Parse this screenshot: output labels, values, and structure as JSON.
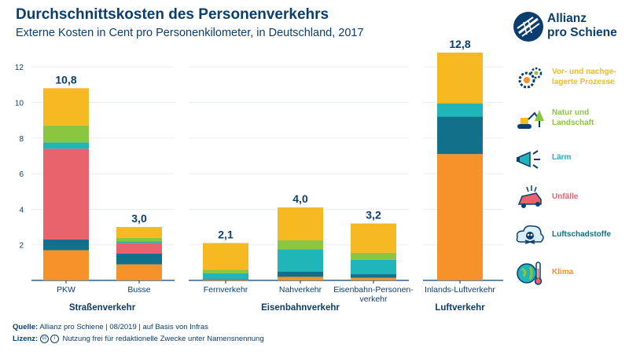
{
  "title": "Durchschnittskosten des Personenverkehrs",
  "subtitle": "Externe Kosten in Cent pro Personenkilometer, in Deutschland, 2017",
  "logo": {
    "line1": "Allianz",
    "line2": "pro Schiene"
  },
  "colors": {
    "prozesse": "#f6b921",
    "natur": "#8bc641",
    "laerm": "#20b5b8",
    "unfaelle": "#e8636b",
    "luftschadstoffe": "#12708a",
    "klima": "#f5922a",
    "text": "#0b3d6e",
    "axis": "#0b3d6e",
    "grid": "#e9eef3"
  },
  "legend": [
    {
      "key": "prozesse",
      "label": "Vor- und nachge-\nlagerte Prozesse",
      "icon": "gears-icon"
    },
    {
      "key": "natur",
      "label": "Natur und\nLandschaft",
      "icon": "excavator-tree-icon"
    },
    {
      "key": "laerm",
      "label": "Lärm",
      "icon": "megaphone-icon"
    },
    {
      "key": "unfaelle",
      "label": "Unfälle",
      "icon": "car-crash-icon"
    },
    {
      "key": "luftschadstoffe",
      "label": "Luftschadstoffe",
      "icon": "skull-cloud-icon"
    },
    {
      "key": "klima",
      "label": "Klima",
      "icon": "globe-thermometer-icon"
    }
  ],
  "chart_data": {
    "type": "bar",
    "stacked": true,
    "ylim": [
      0,
      12.8
    ],
    "yticks": [
      2,
      4,
      6,
      8,
      10,
      12
    ],
    "grid": true,
    "legend_position": "right",
    "categories": [
      "PKW",
      "Busse",
      "Fernverkehr",
      "Nahverkehr",
      "Eisenbahn-Personen-\nverkehr",
      "Inlands-Luftverkehr"
    ],
    "groups": [
      {
        "label": "Straßenverkehr",
        "categories": [
          0,
          1
        ]
      },
      {
        "label": "Eisenbahnverkehr",
        "categories": [
          2,
          3,
          4
        ]
      },
      {
        "label": "Luftverkehr",
        "categories": [
          5
        ]
      }
    ],
    "totals_labels": [
      "10,8",
      "3,0",
      "2,1",
      "4,0",
      "3,2",
      "12,8"
    ],
    "series": [
      {
        "name": "Klima",
        "key": "klima",
        "values": [
          1.7,
          0.9,
          0.05,
          0.2,
          0.15,
          7.1
        ]
      },
      {
        "name": "Luftschadstoffe",
        "key": "luftschadstoffe",
        "values": [
          0.6,
          0.6,
          0.05,
          0.3,
          0.2,
          2.1
        ]
      },
      {
        "name": "Unfälle",
        "key": "unfaelle",
        "values": [
          5.1,
          0.6,
          0.0,
          0.0,
          0.0,
          0.0
        ]
      },
      {
        "name": "Lärm",
        "key": "laerm",
        "values": [
          0.35,
          0.1,
          0.3,
          1.25,
          0.8,
          0.75
        ]
      },
      {
        "name": "Natur und Landschaft",
        "key": "natur",
        "values": [
          0.95,
          0.2,
          0.2,
          0.5,
          0.4,
          0.0
        ]
      },
      {
        "name": "Vor- und nachgelagerte Prozesse",
        "key": "prozesse",
        "values": [
          2.1,
          0.6,
          1.5,
          1.85,
          1.65,
          2.85
        ]
      }
    ]
  },
  "footer": {
    "source_label": "Quelle:",
    "source_text": "Allianz pro Schiene | 08/2019 | auf Basis von Infras",
    "license_label": "Lizenz:",
    "license_badges": [
      "cc",
      "i"
    ],
    "license_text": "Nutzung frei für redaktionelle Zwecke unter Namensnennung"
  }
}
